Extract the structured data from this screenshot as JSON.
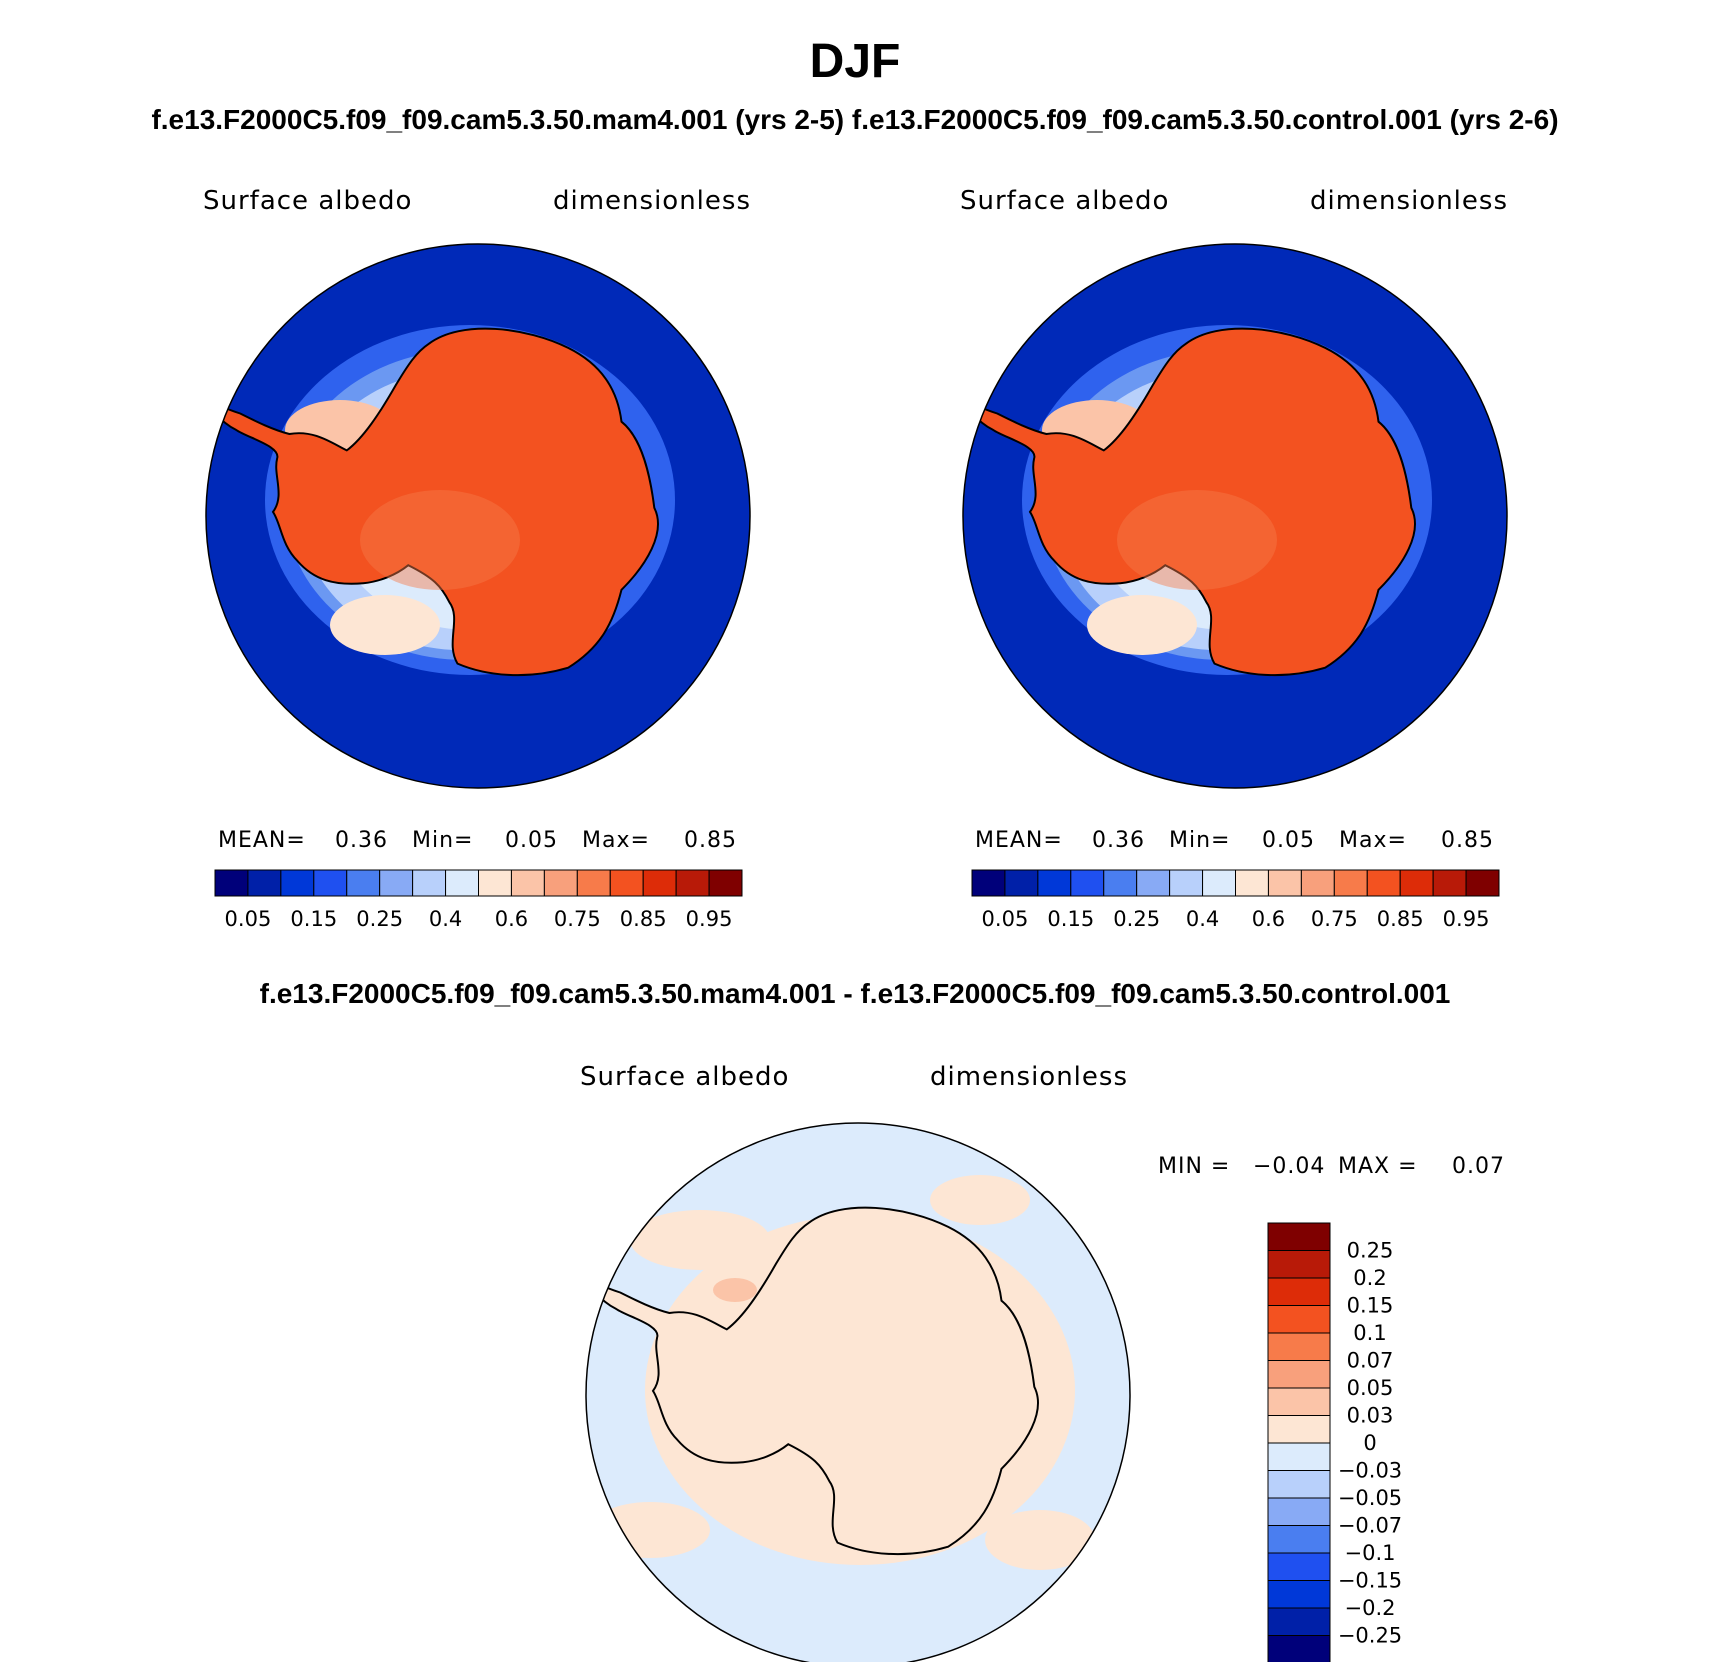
{
  "figure": {
    "season": "DJF",
    "runs_title": "f.e13.F2000C5.f09_f09.cam5.3.50.mam4.001 (yrs 2-5) f.e13.F2000C5.f09_f09.cam5.3.50.control.001 (yrs 2-6)",
    "diff_title": "f.e13.F2000C5.f09_f09.cam5.3.50.mam4.001 - f.e13.F2000C5.f09_f09.cam5.3.50.control.001"
  },
  "chart_data": [
    {
      "type": "heatmap",
      "name": "mam4 run",
      "projection": "south polar stereographic",
      "variable": "Surface albedo",
      "units": "dimensionless",
      "stats": {
        "mean_label": "MEAN=",
        "mean": "0.36",
        "min_label": "Min=",
        "min": "0.05",
        "max_label": "Max=",
        "max": "0.85"
      },
      "colorbar_ticks": [
        "0.05",
        "0.15",
        "0.25",
        "0.4",
        "0.6",
        "0.75",
        "0.85",
        "0.95"
      ],
      "colors": [
        "#00007a",
        "#0020a8",
        "#0038d8",
        "#1f50f0",
        "#4a7ef0",
        "#88aaf5",
        "#b8d0fb",
        "#dcebfc",
        "#fde6d4",
        "#fbc4a8",
        "#f8a07c",
        "#f77b4a",
        "#f35220",
        "#dd2c08",
        "#b81a08",
        "#7f0000"
      ]
    },
    {
      "type": "heatmap",
      "name": "control run",
      "projection": "south polar stereographic",
      "variable": "Surface albedo",
      "units": "dimensionless",
      "stats": {
        "mean_label": "MEAN=",
        "mean": "0.36",
        "min_label": "Min=",
        "min": "0.05",
        "max_label": "Max=",
        "max": "0.85"
      },
      "colorbar_ticks": [
        "0.05",
        "0.15",
        "0.25",
        "0.4",
        "0.6",
        "0.75",
        "0.85",
        "0.95"
      ],
      "colors": [
        "#00007a",
        "#0020a8",
        "#0038d8",
        "#1f50f0",
        "#4a7ef0",
        "#88aaf5",
        "#b8d0fb",
        "#dcebfc",
        "#fde6d4",
        "#fbc4a8",
        "#f8a07c",
        "#f77b4a",
        "#f35220",
        "#dd2c08",
        "#b81a08",
        "#7f0000"
      ]
    },
    {
      "type": "heatmap",
      "name": "difference",
      "projection": "south polar stereographic",
      "variable": "Surface albedo",
      "units": "dimensionless",
      "stats": {
        "min_label": "MIN =",
        "min": "−0.04",
        "max_label": "MAX =",
        "max": "0.07"
      },
      "colorbar_ticks": [
        "0.25",
        "0.2",
        "0.15",
        "0.1",
        "0.07",
        "0.05",
        "0.03",
        "0",
        "−0.03",
        "−0.05",
        "−0.07",
        "−0.1",
        "−0.15",
        "−0.2",
        "−0.25"
      ],
      "colors": [
        "#7f0000",
        "#b81a08",
        "#dd2c08",
        "#f35220",
        "#f77b4a",
        "#f8a07c",
        "#fbc4a8",
        "#fde6d4",
        "#dcebfc",
        "#b8d0fb",
        "#88aaf5",
        "#4a7ef0",
        "#1f50f0",
        "#0038d8",
        "#0020a8",
        "#00007a"
      ]
    }
  ]
}
